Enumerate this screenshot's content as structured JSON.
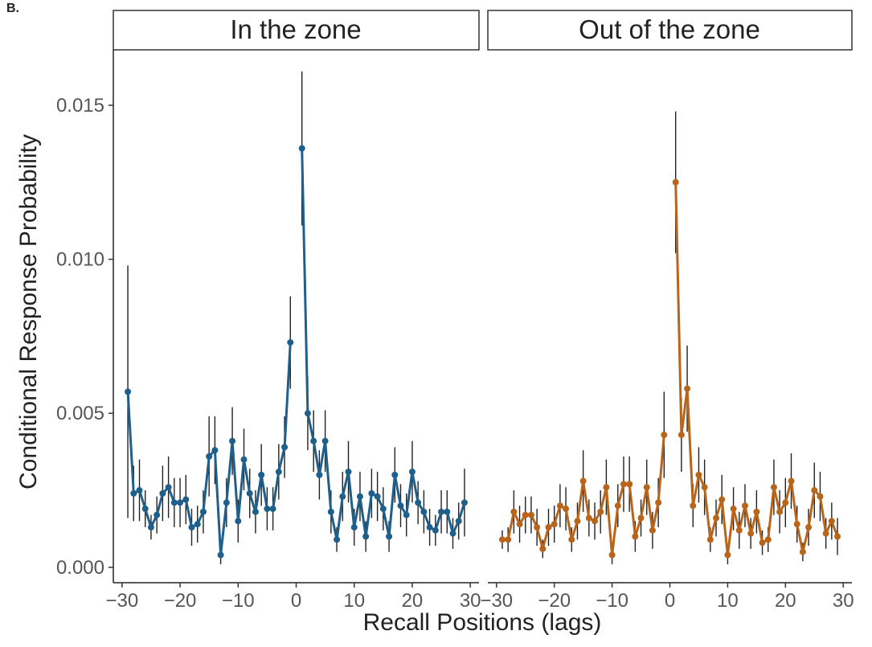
{
  "panel_label": "B.",
  "chart_data": {
    "type": "line",
    "xlabel": "Recall Positions (lags)",
    "ylabel": "Conditional Response Probability",
    "xlim": [
      -31.5,
      31.5
    ],
    "ylim": [
      -0.0005,
      0.0168
    ],
    "x_ticks": [
      -30,
      -20,
      -10,
      0,
      10,
      20,
      30
    ],
    "x_tick_labels": [
      "−30",
      "−20",
      "−10",
      "0",
      "10",
      "20",
      "30"
    ],
    "y_ticks": [
      0.0,
      0.005,
      0.01,
      0.015
    ],
    "y_tick_labels": [
      "0.000",
      "0.005",
      "0.010",
      "0.015"
    ],
    "grid": false,
    "series": [
      {
        "name": "In the zone",
        "color": "#1f5f8b",
        "x": [
          -29,
          -28,
          -27,
          -26,
          -25,
          -24,
          -23,
          -22,
          -21,
          -20,
          -19,
          -18,
          -17,
          -16,
          -15,
          -14,
          -13,
          -12,
          -11,
          -10,
          -9,
          -8,
          -7,
          -6,
          -5,
          -4,
          -3,
          -2,
          -1,
          1,
          2,
          3,
          4,
          5,
          6,
          7,
          8,
          9,
          10,
          11,
          12,
          13,
          14,
          15,
          16,
          17,
          18,
          19,
          20,
          21,
          22,
          23,
          24,
          25,
          26,
          27,
          28,
          29
        ],
        "y": [
          0.0057,
          0.0024,
          0.0025,
          0.0019,
          0.0013,
          0.0017,
          0.0024,
          0.0026,
          0.0021,
          0.0021,
          0.0022,
          0.0013,
          0.0014,
          0.0018,
          0.0036,
          0.0038,
          0.0004,
          0.0021,
          0.0041,
          0.0015,
          0.0035,
          0.0024,
          0.0018,
          0.003,
          0.0019,
          0.0019,
          0.0031,
          0.0039,
          0.0073,
          0.0136,
          0.005,
          0.0041,
          0.003,
          0.0041,
          0.0018,
          0.0009,
          0.0023,
          0.0031,
          0.0013,
          0.0023,
          0.001,
          0.0024,
          0.0023,
          0.0019,
          0.001,
          0.003,
          0.002,
          0.0017,
          0.0031,
          0.0021,
          0.0018,
          0.0013,
          0.0012,
          0.0018,
          0.0018,
          0.0011,
          0.0015,
          0.0021
        ],
        "err": [
          0.0041,
          0.0009,
          0.001,
          0.0006,
          0.0004,
          0.0006,
          0.0009,
          0.001,
          0.0008,
          0.0008,
          0.0008,
          0.0006,
          0.0006,
          0.0007,
          0.0013,
          0.0011,
          0.0003,
          0.0008,
          0.0011,
          0.0007,
          0.001,
          0.0008,
          0.0007,
          0.001,
          0.0007,
          0.0007,
          0.0009,
          0.001,
          0.0015,
          0.0025,
          0.0012,
          0.001,
          0.0008,
          0.001,
          0.0007,
          0.0004,
          0.0008,
          0.001,
          0.0006,
          0.0008,
          0.0005,
          0.0008,
          0.0008,
          0.0007,
          0.0005,
          0.0009,
          0.0007,
          0.0007,
          0.001,
          0.0007,
          0.0007,
          0.0006,
          0.0005,
          0.0007,
          0.0007,
          0.0005,
          0.0006,
          0.0011
        ]
      },
      {
        "name": "Out of the zone",
        "color": "#b8651b",
        "x": [
          -29,
          -28,
          -27,
          -26,
          -25,
          -24,
          -23,
          -22,
          -21,
          -20,
          -19,
          -18,
          -17,
          -16,
          -15,
          -14,
          -13,
          -12,
          -11,
          -10,
          -9,
          -8,
          -7,
          -6,
          -5,
          -4,
          -3,
          -2,
          -1,
          1,
          2,
          3,
          4,
          5,
          6,
          7,
          8,
          9,
          10,
          11,
          12,
          13,
          14,
          15,
          16,
          17,
          18,
          19,
          20,
          21,
          22,
          23,
          24,
          25,
          26,
          27,
          28,
          29
        ],
        "y": [
          0.0009,
          0.0009,
          0.0018,
          0.0014,
          0.0017,
          0.0017,
          0.0013,
          0.0006,
          0.0013,
          0.0014,
          0.002,
          0.0019,
          0.0009,
          0.0015,
          0.0028,
          0.0016,
          0.0015,
          0.0018,
          0.0026,
          0.0004,
          0.002,
          0.0027,
          0.0027,
          0.001,
          0.0016,
          0.0026,
          0.0012,
          0.0021,
          0.0043,
          0.0125,
          0.0043,
          0.0058,
          0.002,
          0.003,
          0.0026,
          0.0009,
          0.0016,
          0.0022,
          0.0004,
          0.0019,
          0.0012,
          0.002,
          0.0011,
          0.0018,
          0.0008,
          0.0009,
          0.0026,
          0.0018,
          0.0021,
          0.0028,
          0.0014,
          0.0005,
          0.0013,
          0.0025,
          0.0023,
          0.0011,
          0.0015,
          0.001
        ],
        "err": [
          0.0003,
          0.0004,
          0.0007,
          0.0006,
          0.0006,
          0.0006,
          0.0006,
          0.0003,
          0.0006,
          0.0006,
          0.0007,
          0.0007,
          0.0004,
          0.0006,
          0.001,
          0.0006,
          0.0006,
          0.0007,
          0.0009,
          0.0003,
          0.0007,
          0.0009,
          0.0009,
          0.0005,
          0.0006,
          0.0009,
          0.0006,
          0.0008,
          0.0014,
          0.0023,
          0.0012,
          0.0014,
          0.0007,
          0.0009,
          0.0009,
          0.0004,
          0.0006,
          0.0008,
          0.0003,
          0.0007,
          0.0006,
          0.0007,
          0.0005,
          0.0007,
          0.0004,
          0.0004,
          0.0009,
          0.0007,
          0.0008,
          0.0009,
          0.0006,
          0.0003,
          0.0006,
          0.0009,
          0.0008,
          0.0005,
          0.0006,
          0.0006
        ]
      }
    ]
  }
}
